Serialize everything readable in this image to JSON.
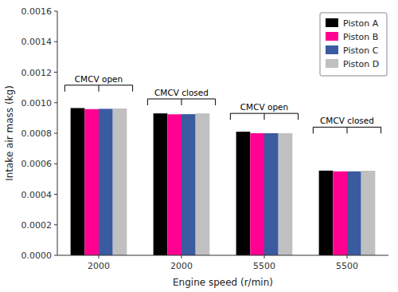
{
  "chart_data": {
    "type": "bar",
    "xlabel": "Engine speed (r/min)",
    "ylabel": "Intake air mass (kg)",
    "categories": [
      "2000",
      "2000",
      "5500",
      "5500"
    ],
    "series": [
      {
        "name": "Piston A",
        "color": "#000000",
        "values": [
          0.000965,
          0.00093,
          0.00081,
          0.000555
        ]
      },
      {
        "name": "Piston B",
        "color": "#FF0090",
        "values": [
          0.000958,
          0.000924,
          0.0008,
          0.00055
        ]
      },
      {
        "name": "Piston C",
        "color": "#3A5BA0",
        "values": [
          0.00096,
          0.000925,
          0.0008,
          0.00055
        ]
      },
      {
        "name": "Piston D",
        "color": "#C0C0C0",
        "values": [
          0.000962,
          0.00093,
          0.0008,
          0.000554
        ]
      }
    ],
    "ylim": [
      0,
      0.0016
    ],
    "yticks": [
      {
        "value": 0,
        "label": "0.0000"
      },
      {
        "value": 0.0002,
        "label": "0.0002"
      },
      {
        "value": 0.0004,
        "label": "0.0004"
      },
      {
        "value": 0.0006,
        "label": "0.0006"
      },
      {
        "value": 0.0008,
        "label": "0.0008"
      },
      {
        "value": 0.001,
        "label": "0.0010"
      },
      {
        "value": 0.0012,
        "label": "0.0012"
      },
      {
        "value": 0.0014,
        "label": "0.0014"
      },
      {
        "value": 0.0016,
        "label": "0.0016"
      }
    ],
    "annotations": [
      {
        "text": "CMCV open",
        "index": 0,
        "y": 0.001115
      },
      {
        "text": "CMCV closed",
        "index": 1,
        "y": 0.001025
      },
      {
        "text": "CMCV open",
        "index": 2,
        "y": 0.00093
      },
      {
        "text": "CMCV closed",
        "index": 3,
        "y": 0.00084
      }
    ],
    "legend": "upper right",
    "grid": false
  }
}
